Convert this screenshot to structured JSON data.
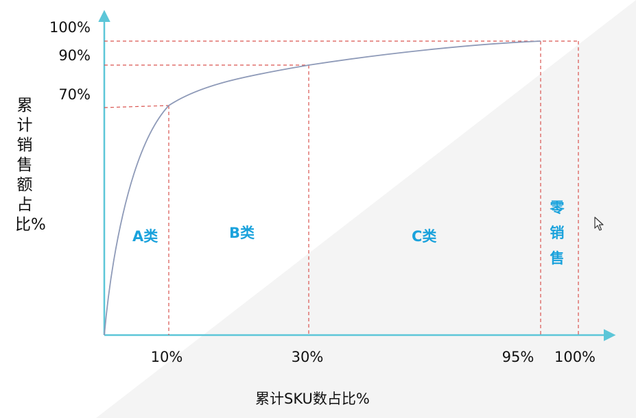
{
  "y_axis": {
    "title": "累计销售额占比%",
    "ticks": [
      "100%",
      "90%",
      "70%"
    ]
  },
  "x_axis": {
    "title": "累计SKU数占比%",
    "ticks": [
      "10%",
      "30%",
      "95%",
      "100%"
    ]
  },
  "regions": {
    "a": "A类",
    "b": "B类",
    "c": "C类",
    "zero": "零销售"
  },
  "colors": {
    "axis": "#5cc6d8",
    "guide": "#d9534f",
    "curve": "#8e9ab8",
    "region_text": "#1aa2dc"
  },
  "chart_data": {
    "type": "line",
    "x": [
      0,
      10,
      30,
      95,
      100
    ],
    "y": [
      0,
      70,
      90,
      100,
      100
    ],
    "xlabel": "累计SKU数占比%",
    "ylabel": "累计销售额占比%",
    "x_ticks": [
      "10%",
      "30%",
      "95%",
      "100%"
    ],
    "y_ticks": [
      "100%",
      "90%",
      "70%"
    ],
    "regions": [
      "A类",
      "B类",
      "C类",
      "零销售"
    ]
  }
}
